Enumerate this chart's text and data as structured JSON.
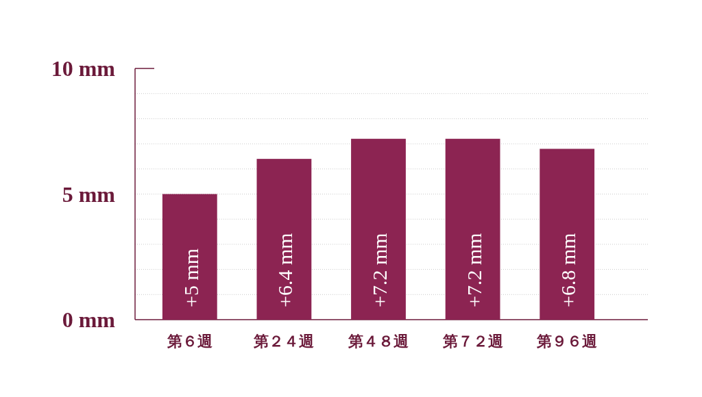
{
  "chart_data": {
    "type": "bar",
    "categories": [
      "第６週",
      "第２４週",
      "第４８週",
      "第７２週",
      "第９６週"
    ],
    "values": [
      5,
      6.4,
      7.2,
      7.2,
      6.8
    ],
    "value_labels": [
      "+5 mm",
      "+6.4 mm",
      "+7.2 mm",
      "+7.2 mm",
      "+6.8 mm"
    ],
    "color": "#8c2452",
    "ylim": [
      0,
      10
    ],
    "yticks": [
      {
        "value": 0,
        "label": "0 mm"
      },
      {
        "value": 1,
        "label": null
      },
      {
        "value": 2,
        "label": null
      },
      {
        "value": 3,
        "label": null
      },
      {
        "value": 4,
        "label": null
      },
      {
        "value": 5,
        "label": "5 mm"
      },
      {
        "value": 6,
        "label": null
      },
      {
        "value": 7,
        "label": null
      },
      {
        "value": 8,
        "label": null
      },
      {
        "value": 9,
        "label": null
      },
      {
        "value": 10,
        "label": "10 mm"
      }
    ],
    "grid": "y"
  }
}
